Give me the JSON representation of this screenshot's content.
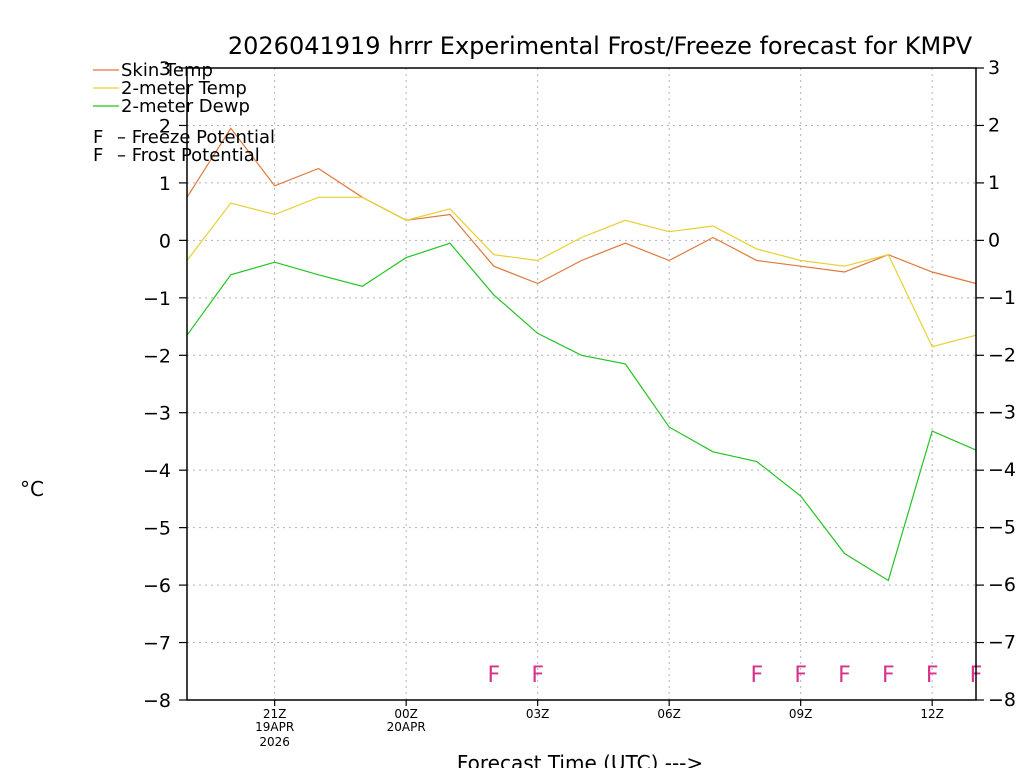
{
  "chart_data": {
    "type": "line",
    "title": "2026041919 hrrr Experimental Frost/Freeze forecast for KMPV",
    "xlabel": "Forecast Time (UTC) --->",
    "ylabel": "°C",
    "ylim": [
      -8,
      3
    ],
    "y_ticks": [
      3,
      2,
      1,
      0,
      -1,
      -2,
      -3,
      -4,
      -5,
      -6,
      -7,
      -8
    ],
    "x_hours": [
      19,
      20,
      21,
      22,
      23,
      24,
      25,
      26,
      27,
      28,
      29,
      30,
      31,
      32,
      33,
      34,
      35,
      36,
      37
    ],
    "xlim": [
      19,
      37
    ],
    "x_ticks": [
      {
        "hour": 21,
        "label": "21Z",
        "date": "19APR",
        "year": "2026"
      },
      {
        "hour": 24,
        "label": "00Z",
        "date": "20APR",
        "year": ""
      },
      {
        "hour": 27,
        "label": "03Z",
        "date": "",
        "year": ""
      },
      {
        "hour": 30,
        "label": "06Z",
        "date": "",
        "year": ""
      },
      {
        "hour": 33,
        "label": "09Z",
        "date": "",
        "year": ""
      },
      {
        "hour": 36,
        "label": "12Z",
        "date": "",
        "year": ""
      }
    ],
    "series": [
      {
        "name": "Skin Temp",
        "color": "#e0783a",
        "values": [
          0.75,
          1.95,
          0.95,
          1.25,
          0.75,
          0.35,
          0.45,
          -0.45,
          -0.75,
          -0.35,
          -0.05,
          -0.35,
          0.05,
          -0.35,
          -0.45,
          -0.55,
          -0.25,
          -0.55,
          -0.75
        ]
      },
      {
        "name": "2-meter Temp",
        "color": "#e8d030",
        "values": [
          -0.35,
          0.65,
          0.45,
          0.75,
          0.75,
          0.35,
          0.55,
          -0.25,
          -0.35,
          0.05,
          0.35,
          0.15,
          0.25,
          -0.15,
          -0.35,
          -0.45,
          -0.25,
          -1.85,
          -1.65
        ]
      },
      {
        "name": "2-meter Dewp",
        "color": "#22c422",
        "values": [
          -1.65,
          -0.6,
          -0.38,
          -0.6,
          -0.8,
          -0.3,
          -0.05,
          -0.95,
          -1.62,
          -2.0,
          -2.15,
          -3.25,
          -3.68,
          -3.85,
          -4.45,
          -5.45,
          -5.92,
          -3.32,
          -3.65
        ]
      }
    ],
    "flags": [
      {
        "hour": 26,
        "letter": "F",
        "type": "freeze"
      },
      {
        "hour": 27,
        "letter": "F",
        "type": "freeze"
      },
      {
        "hour": 32,
        "letter": "F",
        "type": "freeze"
      },
      {
        "hour": 33,
        "letter": "F",
        "type": "freeze"
      },
      {
        "hour": 34,
        "letter": "F",
        "type": "freeze"
      },
      {
        "hour": 35,
        "letter": "F",
        "type": "freeze"
      },
      {
        "hour": 36,
        "letter": "F",
        "type": "freeze"
      },
      {
        "hour": 37,
        "letter": "F",
        "type": "freeze"
      }
    ],
    "flag_level": -7.55,
    "legend": {
      "placement": "top-left",
      "lines": [
        {
          "label": "Skin Temp",
          "color": "#e0783a"
        },
        {
          "label": "2-meter Temp",
          "color": "#e8d030"
        },
        {
          "label": "2-meter Dewp",
          "color": "#22c422"
        }
      ],
      "markers": [
        {
          "letter": "F",
          "text": "– Freeze Potential",
          "color": "#d6338a"
        },
        {
          "letter": "F",
          "text": "– Frost Potential",
          "color": "#4a4ae0"
        }
      ]
    },
    "colors": {
      "freeze": "#d6338a",
      "frost": "#4a4ae0",
      "grid": "#b4b4b4"
    }
  }
}
